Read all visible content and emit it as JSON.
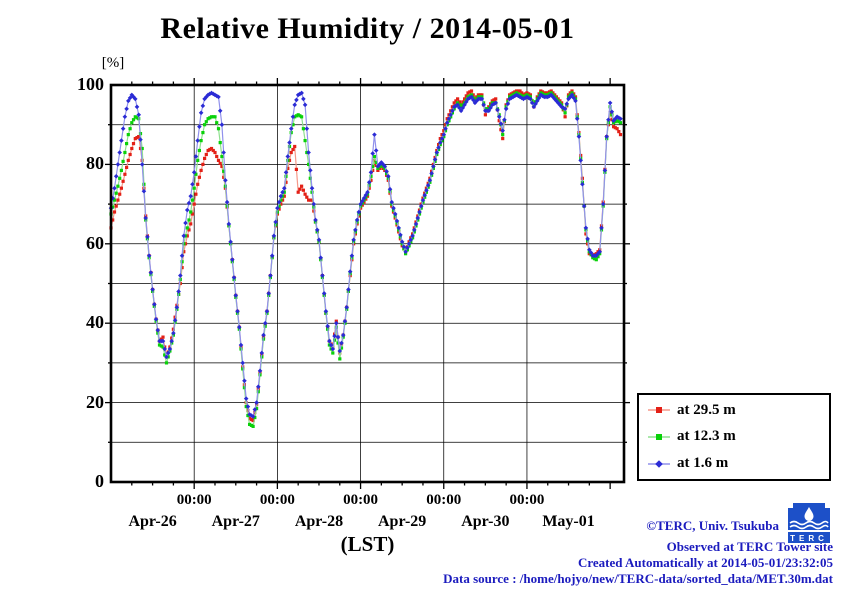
{
  "title": "Relative Humidity / 2014-05-01",
  "y_axis_unit": "[%]",
  "x_axis_title": "(LST)",
  "footer": {
    "copyright": "©TERC, Univ. Tsukuba",
    "observed": "Observed at TERC Tower site",
    "created": "Created Automatically at 2014-05-01/23:32:05",
    "datasource": "Data source : /home/hojyo/new/TERC-data/sorted_data/MET.30m.dat",
    "text_color": "#1b1bbe"
  },
  "logo": {
    "label": "TERC",
    "color": "#1d50c8"
  },
  "chart_data": {
    "type": "line",
    "title": "Relative Humidity / 2014-05-01",
    "ylabel": "[%]",
    "xlabel": "(LST)",
    "x_unit": "hours since 2014-04-26 00:00 LST",
    "xlim": [
      0,
      148
    ],
    "ylim": [
      0,
      100
    ],
    "grid": true,
    "y_major_ticks": [
      0,
      20,
      40,
      60,
      80,
      100
    ],
    "y_gridline_step": 10,
    "x_gridlines_hours": [
      24,
      48,
      72,
      96,
      120
    ],
    "x_major_ticks_hours": [
      24,
      48,
      72,
      96,
      120,
      144
    ],
    "x_minor_tick_step_hours": 6,
    "x_major_tick_label": "00:00",
    "day_labels": [
      {
        "label": "Apr-26",
        "hour": 12
      },
      {
        "label": "Apr-27",
        "hour": 36
      },
      {
        "label": "Apr-28",
        "hour": 60
      },
      {
        "label": "Apr-29",
        "hour": 84
      },
      {
        "label": "Apr-30",
        "hour": 108
      },
      {
        "label": "May-01",
        "hour": 132
      }
    ],
    "legend_position": "outside-right-bottom",
    "series": [
      {
        "name": "at 29.5 m",
        "marker": "square",
        "marker_color": "#e32017",
        "line_color": "#f5998a",
        "t_start": 0,
        "t_step": 1,
        "values": [
          64,
          68,
          71,
          74,
          77.5,
          81,
          84,
          86.5,
          87,
          81,
          67,
          57,
          48.5,
          41,
          35.5,
          36.5,
          31.5,
          34,
          38.5,
          44.5,
          50,
          58,
          62,
          65,
          70,
          75,
          78.5,
          81.5,
          83.5,
          84,
          83,
          81,
          79.5,
          74,
          64.5,
          56,
          47,
          39,
          29,
          20,
          16,
          15.5,
          19.5,
          27.5,
          36.5,
          43,
          52,
          61.5,
          67.5,
          70,
          72,
          79,
          83,
          84.5,
          73,
          74.5,
          72.5,
          71,
          71,
          65.5,
          60.5,
          52,
          42.5,
          35.5,
          34,
          40.5,
          32.5,
          37,
          44,
          52,
          60,
          65,
          69,
          70.5,
          72,
          76,
          81,
          78.5,
          79.5,
          78.5,
          76,
          69.5,
          66.5,
          63,
          59.5,
          58,
          60.5,
          62.5,
          65.5,
          68.5,
          71.5,
          74,
          76.5,
          80,
          83.5,
          86.5,
          88.5,
          91.5,
          93.5,
          95.5,
          96.5,
          95,
          96.5,
          98,
          98.5,
          96.5,
          97.5,
          97.5,
          92.5,
          94.5,
          96,
          96.5,
          91,
          86.5,
          95,
          97.5,
          98,
          98.5,
          98.5,
          97.5,
          98,
          97.5,
          94.5,
          97,
          98.5,
          98,
          98,
          98.5,
          97.5,
          96.5,
          95.5,
          92,
          97.5,
          98.5,
          97,
          88,
          76.5,
          62.5,
          57.5,
          57,
          57.5,
          58.5,
          70.5,
          87,
          93,
          89.5,
          89,
          87.5
        ]
      },
      {
        "name": "at 12.3 m",
        "marker": "square",
        "marker_color": "#0ad10a",
        "line_color": "#8fe08f",
        "t_start": 0,
        "t_step": 1,
        "values": [
          67.5,
          71,
          74.5,
          78.5,
          83,
          87.5,
          90.5,
          92,
          91.5,
          84,
          66,
          56.5,
          48,
          40.5,
          34.5,
          34,
          30,
          33,
          37,
          43.5,
          51,
          60,
          64,
          68,
          74,
          81,
          86,
          90,
          91.5,
          92,
          92,
          89,
          82,
          74.5,
          64.5,
          55.5,
          46.5,
          38.5,
          28.5,
          19,
          14.5,
          14,
          18.5,
          27,
          36,
          42.5,
          51.5,
          61.5,
          68,
          71,
          73,
          81,
          88,
          92,
          92.5,
          92,
          86,
          80,
          73,
          65.5,
          60.5,
          51.5,
          42.5,
          34.5,
          32.5,
          39,
          31,
          36.5,
          43.5,
          52.5,
          60.5,
          65.5,
          69.5,
          71,
          72.5,
          77,
          82,
          79,
          80,
          79,
          76.5,
          70,
          67,
          63.5,
          60,
          57.5,
          59.5,
          61.5,
          64.5,
          67.5,
          70.5,
          73,
          75.5,
          79,
          82.5,
          85,
          87,
          90,
          92,
          94,
          95.5,
          94.5,
          95.5,
          97,
          97.5,
          96,
          97,
          97,
          94,
          94,
          95.5,
          95.5,
          92.5,
          87.5,
          94.5,
          97,
          97.5,
          98,
          97.5,
          97,
          97.5,
          97,
          95,
          96.5,
          98,
          97.5,
          97.5,
          98,
          97,
          96,
          95,
          93,
          97,
          98,
          96.5,
          87.5,
          75.5,
          63.5,
          58,
          56.5,
          56,
          57.5,
          69.5,
          86.5,
          94.5,
          90.5,
          91,
          90.5
        ]
      },
      {
        "name": "at 1.6 m",
        "marker": "diamond",
        "marker_color": "#2b2bd5",
        "line_color": "#9191ec",
        "t_start": 0,
        "t_step": 1,
        "values": [
          69,
          74,
          80,
          86,
          92,
          96,
          97.5,
          96.5,
          92.5,
          80,
          66.5,
          57,
          48.5,
          41,
          35.5,
          35.5,
          31.5,
          33.5,
          37.5,
          44,
          52,
          62,
          68.5,
          72,
          78,
          86,
          93,
          96.5,
          97.5,
          98,
          97.5,
          97,
          90,
          76,
          65,
          56,
          47,
          39,
          30,
          21,
          17,
          16.5,
          20,
          28,
          37,
          43,
          52,
          62,
          69,
          72,
          74,
          82,
          89,
          95,
          97.5,
          98,
          95,
          83,
          74,
          66,
          61,
          52,
          43,
          35.5,
          33.5,
          40,
          33,
          37,
          44,
          53,
          61,
          66,
          70,
          71.5,
          73,
          78,
          87.5,
          79.5,
          80.5,
          79.5,
          77,
          70.5,
          67.5,
          64,
          60.5,
          58,
          60,
          62,
          65,
          68,
          71,
          73.5,
          76,
          79.5,
          83,
          85.5,
          87.5,
          90.5,
          92.5,
          94.5,
          95,
          93.5,
          95,
          96.5,
          97,
          95.5,
          96.5,
          96.5,
          93.5,
          93.5,
          95,
          95.5,
          92,
          88.5,
          94,
          96.5,
          97,
          97.5,
          97,
          96.5,
          97,
          96.5,
          94.5,
          96,
          97.5,
          97,
          97,
          97.5,
          96.5,
          95.5,
          94.5,
          94,
          96.5,
          97.5,
          96,
          87,
          75,
          64,
          58.5,
          57,
          57,
          58,
          70,
          87,
          95.5,
          91,
          92,
          91.5
        ]
      }
    ]
  }
}
